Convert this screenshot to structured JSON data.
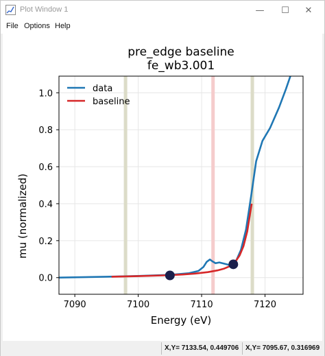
{
  "window": {
    "title": "Plot Window 1",
    "controls": {
      "minimize": "—",
      "maximize": "☐",
      "close": "✕"
    }
  },
  "menu": {
    "file": "File",
    "options": "Options",
    "help": "Help"
  },
  "plot": {
    "title_line1": "pre_edge baseline",
    "title_line2": "fe_wb3.001"
  },
  "chart_data": {
    "type": "line",
    "title": "pre_edge baseline\nfe_wb3.001",
    "xlabel": "Energy (eV)",
    "ylabel": "mu (normalized)",
    "xlim": [
      7087.5,
      7126
    ],
    "ylim": [
      -0.09,
      1.09
    ],
    "x_ticks": [
      "7090",
      "7100",
      "7110",
      "7120"
    ],
    "y_ticks": [
      "0.0",
      "0.2",
      "0.4",
      "0.6",
      "0.8",
      "1.0"
    ],
    "grid": true,
    "legend": {
      "placement": "top-left",
      "entries": [
        "data",
        "baseline"
      ]
    },
    "series": [
      {
        "name": "data",
        "color": "#1f77b4",
        "x": [
          7087.5,
          7095,
          7100,
          7105,
          7108,
          7109.5,
          7110.3,
          7110.8,
          7111.3,
          7111.7,
          7112.2,
          7112.8,
          7113.5,
          7114.2,
          7114.8,
          7115.5,
          7116.2,
          7117.0,
          7117.8,
          7118.6,
          7119.6,
          7120.8,
          7122.2,
          7123.3,
          7124.0
        ],
        "y": [
          0.0,
          0.005,
          0.009,
          0.015,
          0.024,
          0.036,
          0.058,
          0.085,
          0.098,
          0.088,
          0.078,
          0.082,
          0.076,
          0.07,
          0.073,
          0.095,
          0.15,
          0.26,
          0.44,
          0.63,
          0.74,
          0.81,
          0.92,
          1.02,
          1.09
        ]
      },
      {
        "name": "baseline",
        "color": "#d62728",
        "x": [
          7095.8,
          7100,
          7104,
          7107,
          7109,
          7111,
          7112.5,
          7113.5,
          7114.5,
          7115.3,
          7116.0,
          7116.6,
          7117.2,
          7117.9
        ],
        "y": [
          0.005,
          0.008,
          0.012,
          0.017,
          0.022,
          0.03,
          0.039,
          0.048,
          0.063,
          0.085,
          0.12,
          0.17,
          0.25,
          0.4
        ]
      }
    ],
    "vertical_bands": [
      {
        "x": 7098,
        "color": "#dcdcc8"
      },
      {
        "x": 7111.8,
        "color": "#f5cccc"
      },
      {
        "x": 7118,
        "color": "#dcdcc8"
      }
    ],
    "markers": [
      {
        "x": 7105,
        "y": 0.012,
        "color": "#1b1f4b"
      },
      {
        "x": 7115,
        "y": 0.072,
        "color": "#1b1f4b"
      }
    ]
  },
  "status": {
    "cursor1": "X,Y= 7133.54, 0.449706",
    "cursor2": "X,Y= 7095.67, 0.316969"
  }
}
